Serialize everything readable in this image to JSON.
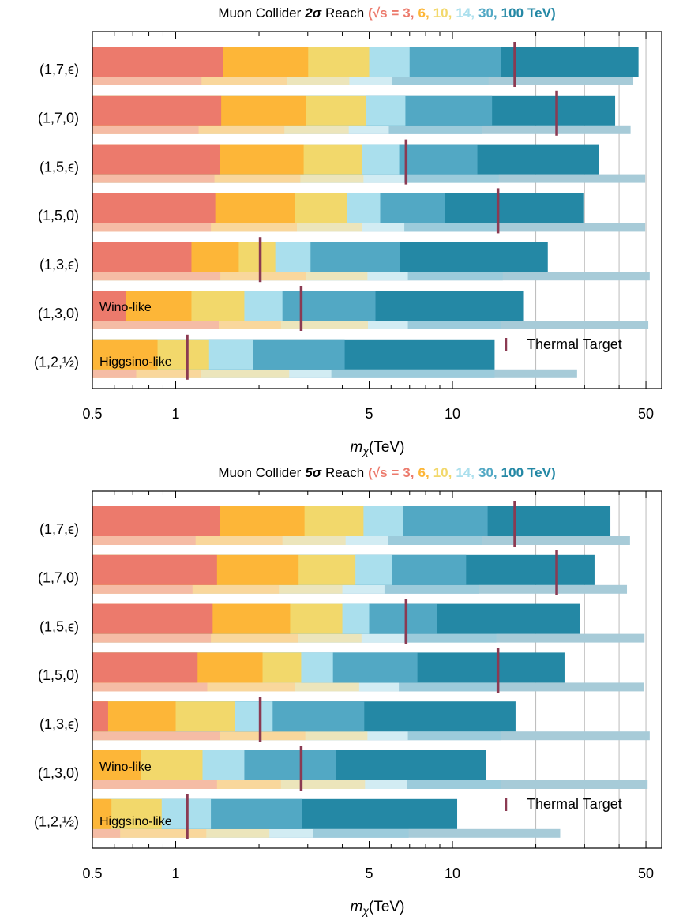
{
  "chart_data": [
    {
      "type": "range-bar",
      "title": "Muon Collider",
      "significance": "2σ",
      "title_suffix": "Reach",
      "legend_open": "(√s =",
      "legend_separator": ",",
      "legend_close": "TeV)",
      "categories": [
        "(1,7,ϵ)",
        "(1,7,0)",
        "(1,5,ϵ)",
        "(1,5,0)",
        "(1,3,ϵ)",
        "(1,3,0)",
        "(1,2,½)"
      ],
      "row_annotations": [
        null,
        null,
        null,
        null,
        null,
        "Wino-like",
        "Higgsino-like"
      ],
      "series": [
        {
          "name": "3",
          "color": "#ec7a6c",
          "faint_color": "#f5bca5",
          "values": [
            1.48,
            1.46,
            1.44,
            1.39,
            1.14,
            0.66,
            null
          ],
          "faint_values": [
            1.24,
            1.21,
            1.38,
            1.34,
            1.45,
            1.43,
            0.72
          ]
        },
        {
          "name": "6",
          "color": "#fdb638",
          "faint_color": "#f9d79c",
          "values": [
            3.01,
            2.95,
            2.9,
            2.69,
            1.69,
            1.14,
            0.86
          ],
          "faint_values": [
            2.52,
            2.47,
            2.82,
            2.74,
            2.96,
            2.4,
            1.23
          ]
        },
        {
          "name": "10",
          "color": "#f2d86b",
          "faint_color": "#ece5bb",
          "values": [
            5.0,
            4.87,
            4.71,
            4.16,
            2.29,
            1.77,
            1.32
          ],
          "faint_values": [
            4.24,
            4.22,
            4.77,
            4.7,
            4.93,
            4.95,
            2.57
          ]
        },
        {
          "name": "14",
          "color": "#aadfed",
          "faint_color": "#d2ecf3",
          "values": [
            7.0,
            6.76,
            6.42,
            5.48,
            3.07,
            2.43,
            1.9
          ],
          "faint_values": [
            6.05,
            5.89,
            6.7,
            6.7,
            6.9,
            6.9,
            3.65
          ]
        },
        {
          "name": "30",
          "color": "#52a8c4",
          "faint_color": "#9ccbdb",
          "values": [
            15,
            13.9,
            12.3,
            9.4,
            6.46,
            5.27,
            4.08
          ],
          "faint_values": [
            13.5,
            12.8,
            14.7,
            14.7,
            15.2,
            15,
            14.2
          ]
        },
        {
          "name": "100",
          "color": "#2488a5",
          "faint_color": "#a7cbd8",
          "values": [
            47,
            38.7,
            33.7,
            29.7,
            22.1,
            18,
            14.2
          ],
          "faint_values": [
            45,
            44,
            49.7,
            49.7,
            51.6,
            51,
            28.2
          ]
        }
      ],
      "thermal_target": {
        "label": "Thermal Target",
        "color": "#8b3a52",
        "values": [
          16.8,
          23.8,
          6.8,
          14.6,
          2.02,
          2.84,
          1.1
        ]
      },
      "xlabel_symbol": "m",
      "xlabel_subscript": "χ",
      "xlabel_unit": "(TeV)",
      "xscale": "log",
      "xlim": [
        0.5,
        57
      ],
      "xticks": [
        0.5,
        1,
        5,
        10,
        50
      ],
      "xminor": [
        0.6,
        0.7,
        0.8,
        0.9,
        2,
        3,
        4,
        6,
        7,
        8,
        9,
        20,
        30,
        40
      ],
      "grid_x": [
        20,
        30,
        40,
        50
      ]
    },
    {
      "type": "range-bar",
      "title": "Muon Collider",
      "significance": "5σ",
      "title_suffix": "Reach",
      "legend_open": "(√s =",
      "legend_separator": ",",
      "legend_close": "TeV)",
      "categories": [
        "(1,7,ϵ)",
        "(1,7,0)",
        "(1,5,ϵ)",
        "(1,5,0)",
        "(1,3,ϵ)",
        "(1,3,0)",
        "(1,2,½)"
      ],
      "row_annotations": [
        null,
        null,
        null,
        null,
        null,
        "Wino-like",
        "Higgsino-like"
      ],
      "series": [
        {
          "name": "3",
          "color": "#ec7a6c",
          "faint_color": "#f5bca5",
          "values": [
            1.44,
            1.41,
            1.36,
            1.2,
            0.57,
            null,
            null
          ],
          "faint_values": [
            1.18,
            1.15,
            1.34,
            1.3,
            1.44,
            1.41,
            0.63
          ]
        },
        {
          "name": "6",
          "color": "#fdb638",
          "faint_color": "#f9d79c",
          "values": [
            2.92,
            2.78,
            2.59,
            2.06,
            1.0,
            0.75,
            0.586
          ],
          "faint_values": [
            2.43,
            2.36,
            2.76,
            2.7,
            2.94,
            2.4,
            1.29
          ]
        },
        {
          "name": "10",
          "color": "#f2d86b",
          "faint_color": "#ece5bb",
          "values": [
            4.77,
            4.46,
            4.0,
            2.84,
            1.64,
            1.25,
            0.89
          ],
          "faint_values": [
            4.11,
            4.0,
            4.69,
            4.6,
            4.93,
            4.83,
            2.18
          ]
        },
        {
          "name": "14",
          "color": "#aadfed",
          "faint_color": "#d2ecf3",
          "values": [
            6.64,
            6.06,
            5.0,
            3.7,
            2.24,
            1.77,
            1.34
          ],
          "faint_values": [
            5.86,
            5.68,
            6.7,
            6.4,
            6.9,
            6.85,
            3.13
          ]
        },
        {
          "name": "30",
          "color": "#52a8c4",
          "faint_color": "#9ccbdb",
          "values": [
            13.4,
            11.2,
            8.8,
            7.47,
            4.8,
            3.8,
            2.86
          ],
          "faint_values": [
            12.8,
            12.5,
            14.4,
            14.6,
            15,
            15,
            6.95
          ]
        },
        {
          "name": "100",
          "color": "#2488a5",
          "faint_color": "#a7cbd8",
          "values": [
            37.2,
            32.6,
            28.8,
            25.4,
            16.9,
            13.2,
            10.4
          ],
          "faint_values": [
            43.8,
            42.7,
            49.4,
            49,
            51.6,
            50.7,
            24.5
          ]
        }
      ],
      "thermal_target": {
        "label": "Thermal Target",
        "color": "#8b3a52",
        "values": [
          16.8,
          23.8,
          6.8,
          14.6,
          2.02,
          2.84,
          1.1
        ]
      },
      "xlabel_symbol": "m",
      "xlabel_subscript": "χ",
      "xlabel_unit": "(TeV)",
      "xscale": "log",
      "xlim": [
        0.5,
        57
      ],
      "xticks": [
        0.5,
        1,
        5,
        10,
        50
      ],
      "xminor": [
        0.6,
        0.7,
        0.8,
        0.9,
        2,
        3,
        4,
        6,
        7,
        8,
        9,
        20,
        30,
        40
      ],
      "grid_x": [
        20,
        30,
        40,
        50
      ]
    }
  ]
}
